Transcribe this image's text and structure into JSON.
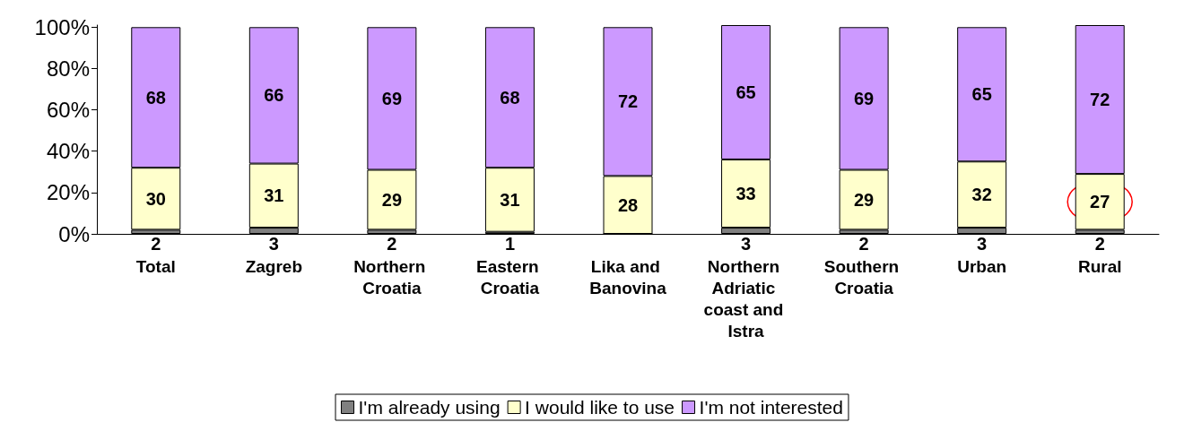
{
  "chart_data": {
    "type": "bar",
    "stacked": true,
    "categories": [
      "Total",
      "Zagreb",
      "Northern Croatia",
      "Eastern Croatia",
      "Lika and Banovina",
      "Northern Adriatic coast and Istra",
      "Southern Croatia",
      "Urban",
      "Rural"
    ],
    "series": [
      {
        "name": "I'm already using",
        "color": "#808080",
        "values": [
          2,
          3,
          2,
          1,
          0,
          3,
          2,
          3,
          2
        ],
        "value_labels": [
          "2",
          "3",
          "2",
          "1",
          null,
          "3",
          "2",
          "3",
          "2"
        ]
      },
      {
        "name": "I would like to use",
        "color": "#ffffcc",
        "values": [
          30,
          31,
          29,
          31,
          28,
          33,
          29,
          32,
          27
        ]
      },
      {
        "name": "I'm not interested",
        "color": "#cc99ff",
        "values": [
          68,
          66,
          69,
          68,
          72,
          65,
          69,
          65,
          72
        ]
      }
    ],
    "data_labels": true,
    "ylim": [
      0,
      101
    ],
    "yticks": [
      {
        "value": 0,
        "label": "0%"
      },
      {
        "value": 20,
        "label": "20%"
      },
      {
        "value": 40,
        "label": "40%"
      },
      {
        "value": 60,
        "label": "60%"
      },
      {
        "value": 80,
        "label": "80%"
      },
      {
        "value": 100,
        "label": "100%"
      }
    ],
    "grid": false,
    "legend": "bottom"
  }
}
